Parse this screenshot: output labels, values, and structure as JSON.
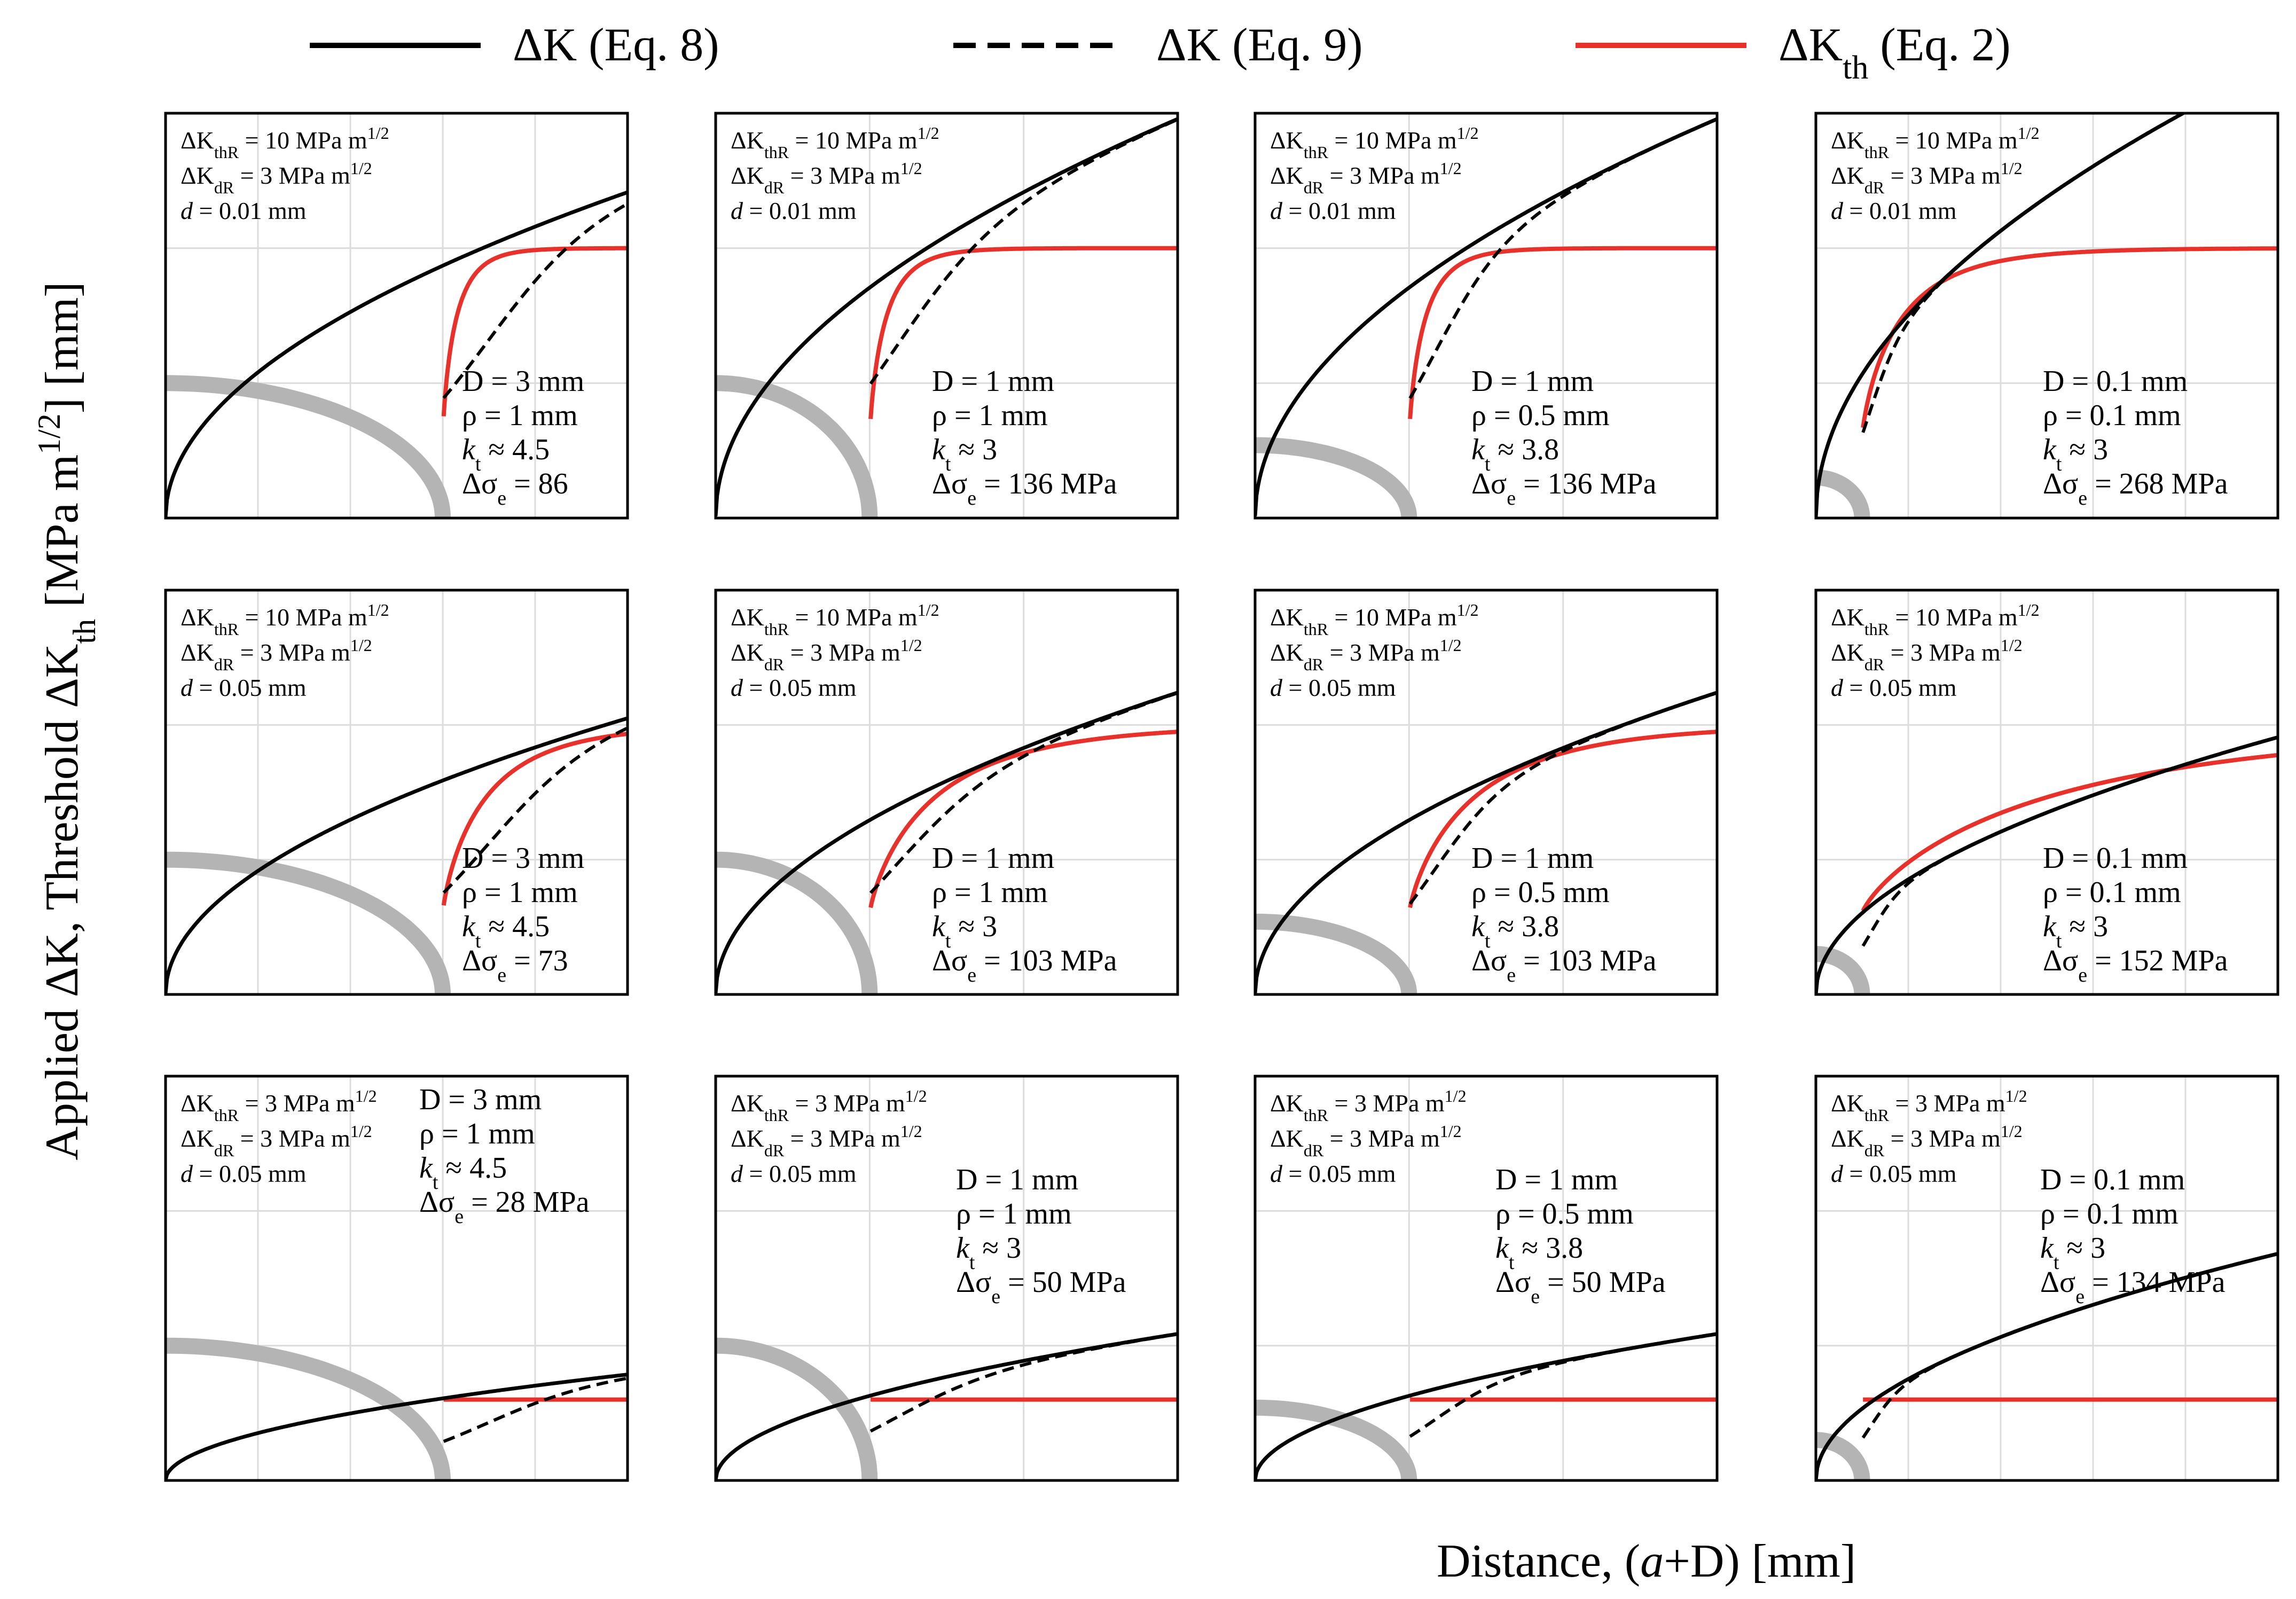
{
  "figure": {
    "y_axis_title_pre": "Applied ΔK,   Threshold ΔK",
    "y_axis_title_sub": "th",
    "y_axis_title_post": "  [MPa m",
    "y_axis_title_sup": "1/2",
    "y_axis_title_end": "]  [mm]",
    "x_axis_title_pre": "Distance, (",
    "x_axis_title_var": "a",
    "x_axis_title_post": "+D)     [mm]"
  },
  "legend": [
    {
      "name": "ΔK (Eq. 8)",
      "label_main": "ΔK (Eq. 8)",
      "label_sub": "",
      "label_tail": "",
      "style": "solid",
      "color": "#000000"
    },
    {
      "name": "ΔK (Eq. 9)",
      "label_main": "ΔK (Eq. 9)",
      "label_sub": "",
      "label_tail": "",
      "style": "dashed",
      "color": "#000000"
    },
    {
      "name": "ΔKth (Eq. 2)",
      "label_main": "ΔK",
      "label_sub": "th",
      "label_tail": " (Eq. 2)",
      "style": "solid",
      "color": "#e8312a"
    }
  ],
  "colors": {
    "applied": "#000000",
    "threshold": "#e8312a",
    "notch": "#b4b4b4",
    "grid": "#dcdcdc",
    "frame": "#000000"
  },
  "chart_data": [
    {
      "type": "line",
      "row": 0,
      "col": 0,
      "xlim": [
        0,
        5
      ],
      "ylim": [
        0,
        15
      ],
      "xticks": [
        "0",
        "1",
        "2",
        "3",
        "4",
        "5"
      ],
      "yticks": [
        "0",
        "5",
        "10",
        "15"
      ],
      "D": 3,
      "rho": 1,
      "kt": 4.5,
      "dKthR": 10,
      "dKdR": 3,
      "d": 0.01,
      "ds": 86,
      "info": [
        "ΔKthR = 10 MPa m1/2",
        "ΔKdR = 3 MPa m1/2",
        "d = 0.01 mm"
      ],
      "notch": [
        "D = 3 mm",
        "ρ = 1 mm",
        "kt ≈ 4.5",
        "Δσe = 86"
      ]
    },
    {
      "type": "line",
      "row": 0,
      "col": 1,
      "xlim": [
        0,
        3
      ],
      "ylim": [
        0,
        15
      ],
      "xticks": [
        "0",
        "1",
        "2",
        "3"
      ],
      "yticks": [
        "0",
        "5",
        "10",
        "15"
      ],
      "D": 1,
      "rho": 1,
      "kt": 3,
      "dKthR": 10,
      "dKdR": 3,
      "d": 0.01,
      "ds": 136,
      "info": [
        "ΔKthR = 10 MPa m1/2",
        "ΔKdR = 3 MPa m1/2",
        "d = 0.01 mm"
      ],
      "notch": [
        "D = 1 mm",
        "ρ = 1 mm",
        "kt ≈ 3",
        "Δσe = 136 MPa"
      ]
    },
    {
      "type": "line",
      "row": 0,
      "col": 2,
      "xlim": [
        0,
        3
      ],
      "ylim": [
        0,
        15
      ],
      "xticks": [
        "0",
        "1",
        "2",
        "3"
      ],
      "yticks": [
        "0",
        "5",
        "10",
        "15"
      ],
      "D": 1,
      "rho": 0.5,
      "kt": 3.8,
      "dKthR": 10,
      "dKdR": 3,
      "d": 0.01,
      "ds": 136,
      "info": [
        "ΔKthR = 10 MPa m1/2",
        "ΔKdR = 3 MPa m1/2",
        "d = 0.01 mm"
      ],
      "notch": [
        "D = 1 mm",
        "ρ = 0.5 mm",
        "kt ≈ 3.8",
        "Δσe = 136 MPa"
      ]
    },
    {
      "type": "line",
      "row": 0,
      "col": 3,
      "xlim": [
        0,
        1
      ],
      "ylim": [
        0,
        15
      ],
      "xticks": [
        "0",
        "0.2",
        "0.4",
        "0.6",
        "0.8",
        "1"
      ],
      "yticks": [
        "0",
        "5",
        "10",
        "15"
      ],
      "D": 0.1,
      "rho": 0.1,
      "kt": 3,
      "dKthR": 10,
      "dKdR": 3,
      "d": 0.01,
      "ds": 268,
      "info": [
        "ΔKthR = 10 MPa m1/2",
        "ΔKdR = 3 MPa m1/2",
        "d = 0.01 mm"
      ],
      "notch": [
        "D = 0.1 mm",
        "ρ = 0.1 mm",
        "kt ≈ 3",
        "Δσe = 268 MPa"
      ]
    },
    {
      "type": "line",
      "row": 1,
      "col": 0,
      "xlim": [
        0,
        5
      ],
      "ylim": [
        0,
        15
      ],
      "xticks": [
        "0",
        "1",
        "2",
        "3",
        "4",
        "5"
      ],
      "yticks": [
        "0",
        "5",
        "10",
        "15"
      ],
      "D": 3,
      "rho": 1,
      "kt": 4.5,
      "dKthR": 10,
      "dKdR": 3,
      "d": 0.05,
      "ds": 73,
      "info": [
        "ΔKthR = 10 MPa m1/2",
        "ΔKdR = 3 MPa m1/2",
        "d = 0.05 mm"
      ],
      "notch": [
        "D = 3 mm",
        "ρ = 1 mm",
        "kt ≈ 4.5",
        "Δσe = 73"
      ]
    },
    {
      "type": "line",
      "row": 1,
      "col": 1,
      "xlim": [
        0,
        3
      ],
      "ylim": [
        0,
        15
      ],
      "xticks": [
        "0",
        "1",
        "2",
        "3"
      ],
      "yticks": [
        "0",
        "5",
        "10",
        "15"
      ],
      "D": 1,
      "rho": 1,
      "kt": 3,
      "dKthR": 10,
      "dKdR": 3,
      "d": 0.05,
      "ds": 103,
      "info": [
        "ΔKthR = 10 MPa m1/2",
        "ΔKdR = 3 MPa m1/2",
        "d = 0.05 mm"
      ],
      "notch": [
        "D = 1 mm",
        "ρ = 1 mm",
        "kt ≈ 3",
        "Δσe = 103 MPa"
      ]
    },
    {
      "type": "line",
      "row": 1,
      "col": 2,
      "xlim": [
        0,
        3
      ],
      "ylim": [
        0,
        15
      ],
      "xticks": [
        "0",
        "1",
        "2",
        "3"
      ],
      "yticks": [
        "0",
        "5",
        "10",
        "15"
      ],
      "D": 1,
      "rho": 0.5,
      "kt": 3.8,
      "dKthR": 10,
      "dKdR": 3,
      "d": 0.05,
      "ds": 103,
      "info": [
        "ΔKthR = 10 MPa m1/2",
        "ΔKdR = 3 MPa m1/2",
        "d = 0.05 mm"
      ],
      "notch": [
        "D = 1 mm",
        "ρ = 0.5 mm",
        "kt ≈ 3.8",
        "Δσe = 103 MPa"
      ]
    },
    {
      "type": "line",
      "row": 1,
      "col": 3,
      "xlim": [
        0,
        1
      ],
      "ylim": [
        0,
        15
      ],
      "xticks": [
        "0",
        "0.2",
        "0.4",
        "0.6",
        "0.8",
        "1"
      ],
      "yticks": [
        "0",
        "5",
        "10",
        "15"
      ],
      "D": 0.1,
      "rho": 0.1,
      "kt": 3,
      "dKthR": 10,
      "dKdR": 3,
      "d": 0.05,
      "ds": 152,
      "info": [
        "ΔKthR = 10 MPa m1/2",
        "ΔKdR = 3 MPa m1/2",
        "d = 0.05 mm"
      ],
      "notch": [
        "D = 0.1 mm",
        "ρ = 0.1 mm",
        "kt ≈ 3",
        "Δσe = 152 MPa"
      ]
    },
    {
      "type": "line",
      "row": 2,
      "col": 0,
      "xlim": [
        0,
        5
      ],
      "ylim": [
        0,
        15
      ],
      "xticks": [
        "0",
        "1",
        "2",
        "3",
        "4",
        "5"
      ],
      "yticks": [
        "0",
        "5",
        "10",
        "15"
      ],
      "D": 3,
      "rho": 1,
      "kt": 4.5,
      "dKthR": 3,
      "dKdR": 3,
      "d": 0.05,
      "ds": 28,
      "info": [
        "ΔKthR = 3 MPa m1/2",
        "ΔKdR = 3 MPa m1/2",
        "d = 0.05 mm"
      ],
      "notch": [
        "D = 3 mm",
        "ρ = 1 mm",
        "kt ≈ 4.5",
        "Δσe = 28 MPa"
      ]
    },
    {
      "type": "line",
      "row": 2,
      "col": 1,
      "xlim": [
        0,
        3
      ],
      "ylim": [
        0,
        15
      ],
      "xticks": [
        "0",
        "1",
        "2",
        "3"
      ],
      "yticks": [
        "0",
        "5",
        "10",
        "15"
      ],
      "D": 1,
      "rho": 1,
      "kt": 3,
      "dKthR": 3,
      "dKdR": 3,
      "d": 0.05,
      "ds": 50,
      "info": [
        "ΔKthR = 3 MPa m1/2",
        "ΔKdR = 3 MPa m1/2",
        "d = 0.05 mm"
      ],
      "notch": [
        "D = 1 mm",
        "ρ = 1 mm",
        "kt ≈ 3",
        "Δσe = 50 MPa"
      ]
    },
    {
      "type": "line",
      "row": 2,
      "col": 2,
      "xlim": [
        0,
        3
      ],
      "ylim": [
        0,
        15
      ],
      "xticks": [
        "0",
        "1",
        "2",
        "3"
      ],
      "yticks": [
        "0",
        "5",
        "10",
        "15"
      ],
      "D": 1,
      "rho": 0.5,
      "kt": 3.8,
      "dKthR": 3,
      "dKdR": 3,
      "d": 0.05,
      "ds": 50,
      "info": [
        "ΔKthR = 3 MPa m1/2",
        "ΔKdR = 3 MPa m1/2",
        "d = 0.05 mm"
      ],
      "notch": [
        "D = 1 mm",
        "ρ = 0.5 mm",
        "kt ≈ 3.8",
        "Δσe = 50 MPa"
      ]
    },
    {
      "type": "line",
      "row": 2,
      "col": 3,
      "xlim": [
        0,
        1
      ],
      "ylim": [
        0,
        15
      ],
      "xticks": [
        "0",
        "0.2",
        "0.4",
        "0.6",
        "0.8",
        "1"
      ],
      "yticks": [
        "0",
        "5",
        "10",
        "15"
      ],
      "D": 0.1,
      "rho": 0.1,
      "kt": 3,
      "dKthR": 3,
      "dKdR": 3,
      "d": 0.05,
      "ds": 134,
      "info": [
        "ΔKthR = 3 MPa m1/2",
        "ΔKdR = 3 MPa m1/2",
        "d = 0.05 mm"
      ],
      "notch": [
        "D = 0.1 mm",
        "ρ = 0.1 mm",
        "kt ≈ 3",
        "Δσe = 134 MPa"
      ]
    }
  ]
}
